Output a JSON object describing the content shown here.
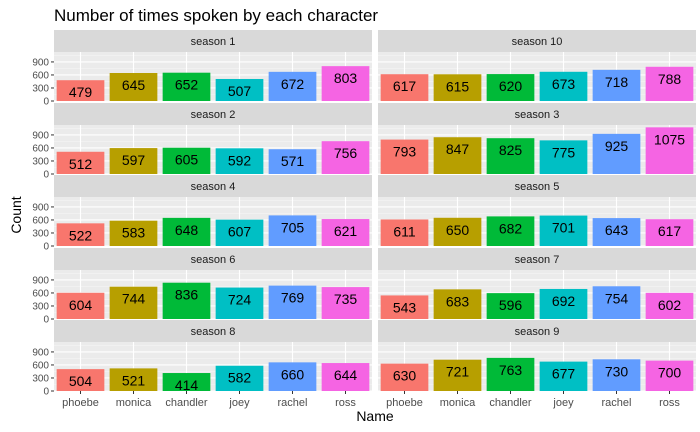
{
  "chart_data": {
    "type": "bar",
    "title": "Number of times spoken by each character",
    "xlabel": "Name",
    "ylabel": "Count",
    "ylim": [
      0,
      1075
    ],
    "yticks": [
      0,
      300,
      600,
      900
    ],
    "categories": [
      "phoebe",
      "monica",
      "chandler",
      "joey",
      "rachel",
      "ross"
    ],
    "colors": [
      "#F8766D",
      "#B79F00",
      "#00BA38",
      "#00BFC4",
      "#619CFF",
      "#F564E3"
    ],
    "facets": [
      {
        "name": "season 1",
        "values": [
          479,
          645,
          652,
          507,
          672,
          803
        ]
      },
      {
        "name": "season 10",
        "values": [
          617,
          615,
          620,
          673,
          718,
          788
        ]
      },
      {
        "name": "season 2",
        "values": [
          512,
          597,
          605,
          592,
          571,
          756
        ]
      },
      {
        "name": "season 3",
        "values": [
          793,
          847,
          825,
          775,
          925,
          1075
        ]
      },
      {
        "name": "season 4",
        "values": [
          522,
          583,
          648,
          607,
          705,
          621
        ]
      },
      {
        "name": "season 5",
        "values": [
          611,
          650,
          682,
          701,
          643,
          617
        ]
      },
      {
        "name": "season 6",
        "values": [
          604,
          744,
          836,
          724,
          769,
          735
        ]
      },
      {
        "name": "season 7",
        "values": [
          543,
          683,
          596,
          692,
          754,
          602
        ]
      },
      {
        "name": "season 8",
        "values": [
          504,
          521,
          414,
          582,
          660,
          644
        ]
      },
      {
        "name": "season 9",
        "values": [
          630,
          721,
          763,
          677,
          730,
          700
        ]
      }
    ]
  }
}
